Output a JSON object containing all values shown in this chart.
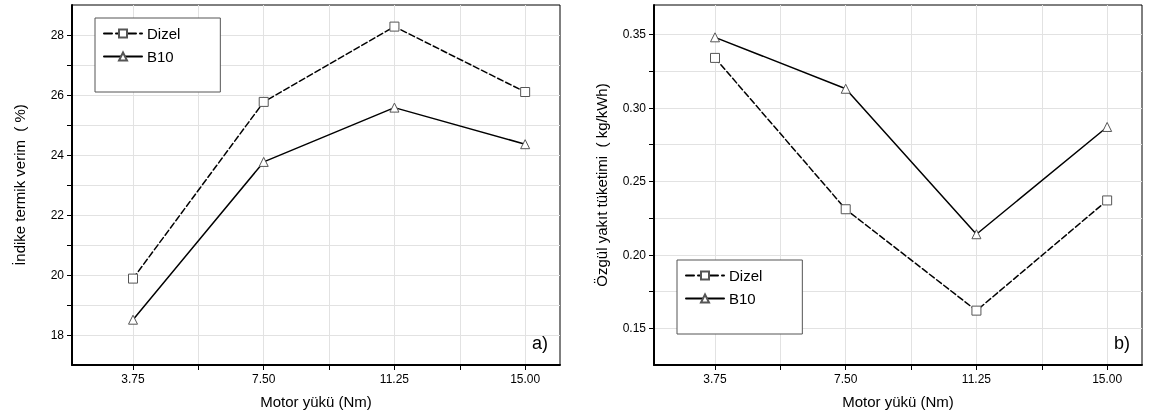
{
  "chart_data": [
    {
      "type": "line",
      "xlabel": "Motor yükü (Nm)",
      "ylabel": "İndike termik verim  ( %)",
      "x": [
        3.75,
        7.5,
        11.25,
        15
      ],
      "series": [
        {
          "name": "Dizel",
          "color": "#000000",
          "values": [
            19.88,
            25.77,
            28.28,
            26.1
          ],
          "marker": "square",
          "line_style": "dashed"
        },
        {
          "name": "B10",
          "color": "#000000",
          "values": [
            18.51,
            23.77,
            25.58,
            24.36
          ],
          "marker": "triangle",
          "line_style": "solid"
        }
      ],
      "xlim": [
        2,
        16
      ],
      "xticks": [
        {
          "value": 3.75,
          "label": "3.75"
        },
        {
          "value": 5.625,
          "label": null
        },
        {
          "value": 7.5,
          "label": "7.50"
        },
        {
          "value": 9.375,
          "label": null
        },
        {
          "value": 11.25,
          "label": "11.25"
        },
        {
          "value": 13.125,
          "label": null
        },
        {
          "value": 15,
          "label": "15.00"
        }
      ],
      "ylim": [
        17,
        29
      ],
      "yticks": [
        18,
        {
          "value": 19,
          "label": null
        },
        20,
        {
          "value": 21,
          "label": null
        },
        22,
        {
          "value": 23,
          "label": null
        },
        24,
        {
          "value": 25,
          "label": null
        },
        26,
        {
          "value": 27,
          "label": null
        },
        28
      ],
      "grid": true,
      "legend": "top left",
      "annotations": [
        "a)"
      ]
    },
    {
      "type": "line",
      "xlabel": "Motor yükü (Nm)",
      "ylabel": "Özgül yakıt tüketimi  ( kg/kWh)",
      "x": [
        3.75,
        7.5,
        11.25,
        15
      ],
      "series": [
        {
          "name": "Dizel",
          "color": "#000000",
          "values": [
            0.334,
            0.231,
            0.162,
            0.237
          ],
          "marker": "square",
          "line_style": "dashed"
        },
        {
          "name": "B10",
          "color": "#000000",
          "values": [
            0.348,
            0.313,
            0.214,
            0.287
          ],
          "marker": "triangle",
          "line_style": "solid"
        }
      ],
      "xlim": [
        2,
        16
      ],
      "xticks": [
        {
          "value": 3.75,
          "label": "3.75"
        },
        {
          "value": 5.625,
          "label": null
        },
        {
          "value": 7.5,
          "label": "7.50"
        },
        {
          "value": 9.375,
          "label": null
        },
        {
          "value": 11.25,
          "label": "11.25"
        },
        {
          "value": 13.125,
          "label": null
        },
        {
          "value": 15,
          "label": "15.00"
        }
      ],
      "ylim": [
        0.125,
        0.37
      ],
      "yticks": [
        {
          "value": 0.15,
          "label": "0.15"
        },
        {
          "value": 0.175,
          "label": null
        },
        {
          "value": 0.2,
          "label": "0.20"
        },
        {
          "value": 0.225,
          "label": null
        },
        {
          "value": 0.25,
          "label": "0.25"
        },
        {
          "value": 0.275,
          "label": null
        },
        {
          "value": 0.3,
          "label": "0.30"
        },
        {
          "value": 0.325,
          "label": null
        },
        {
          "value": 0.35,
          "label": "0.35"
        }
      ],
      "grid": true,
      "legend": "bottom left",
      "annotations": [
        "b)"
      ]
    }
  ]
}
